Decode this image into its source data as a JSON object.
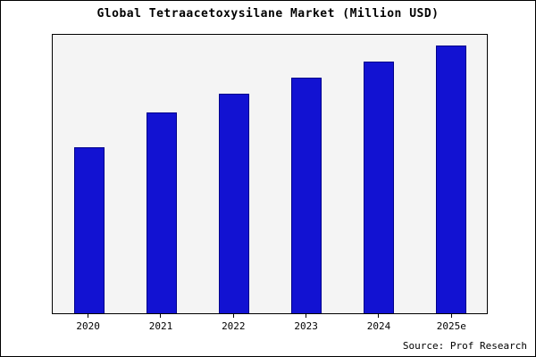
{
  "title": "Global Tetraacetoxysilane Market (Million USD)",
  "source": "Source: Prof Research",
  "chart_data": {
    "type": "bar",
    "title": "Global Tetraacetoxysilane Market (Million USD)",
    "categories": [
      "2020",
      "2021",
      "2022",
      "2023",
      "2024",
      "2025e"
    ],
    "values": [
      62,
      75,
      82,
      88,
      94,
      100
    ],
    "xlabel": "",
    "ylabel": "",
    "ylim": [
      0,
      104
    ],
    "grid": false,
    "legend": "none",
    "annotation": "Source: Prof Research",
    "colors": {
      "bar_fill": "#1212d2",
      "bar_border": "#00008b",
      "plot_background": "#f4f4f4",
      "frame_background": "#ffffff",
      "text": "#000000"
    }
  }
}
